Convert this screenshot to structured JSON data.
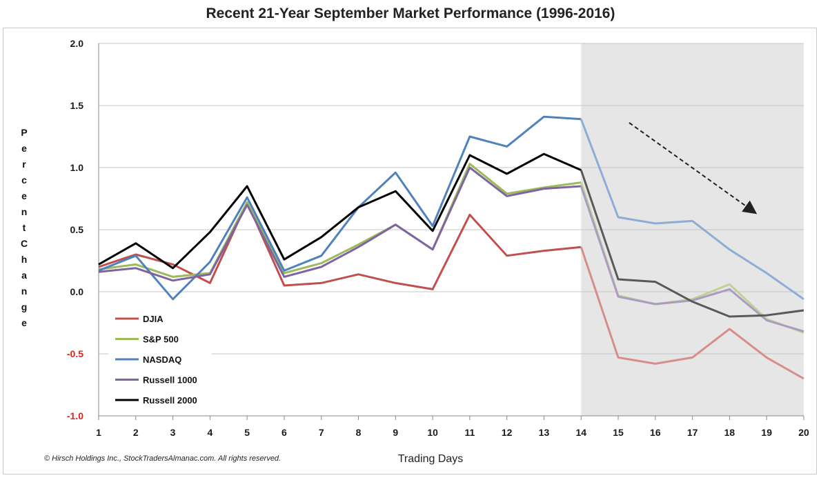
{
  "chart_data": {
    "type": "line",
    "title": "Recent 21-Year September Market Performance (1996-2016)",
    "xlabel": "Trading Days",
    "ylabel": "Percent Change",
    "x": [
      1,
      2,
      3,
      4,
      5,
      6,
      7,
      8,
      9,
      10,
      11,
      12,
      13,
      14,
      15,
      16,
      17,
      18,
      19,
      20
    ],
    "ylim": [
      -1.0,
      2.0
    ],
    "yticks": [
      "2.0",
      "1.5",
      "1.0",
      "0.5",
      "0.0",
      "-0.5",
      "-1.0"
    ],
    "shaded_region": {
      "from": 14,
      "to": 20,
      "color": "#e6e6e6"
    },
    "grid": true,
    "legend_position": "bottom-left",
    "series": [
      {
        "name": "DJIA",
        "color": "#c0504d",
        "values": [
          0.2,
          0.3,
          0.22,
          0.07,
          0.72,
          0.05,
          0.07,
          0.14,
          0.07,
          0.02,
          0.62,
          0.29,
          0.33,
          0.36,
          -0.53,
          -0.58,
          -0.53,
          -0.3,
          -0.53,
          -0.7
        ]
      },
      {
        "name": "S&P 500",
        "color": "#9bbb59",
        "values": [
          0.18,
          0.22,
          0.12,
          0.15,
          0.72,
          0.15,
          0.23,
          0.38,
          0.54,
          0.34,
          1.03,
          0.79,
          0.84,
          0.88,
          -0.03,
          -0.1,
          -0.06,
          0.06,
          -0.22,
          -0.33
        ]
      },
      {
        "name": "NASDAQ",
        "color": "#4f81bd",
        "values": [
          0.17,
          0.29,
          -0.06,
          0.24,
          0.76,
          0.17,
          0.29,
          0.68,
          0.96,
          0.53,
          1.25,
          1.17,
          1.41,
          1.39,
          0.6,
          0.55,
          0.57,
          0.34,
          0.15,
          -0.06
        ]
      },
      {
        "name": "Russell 1000",
        "color": "#8064a2",
        "values": [
          0.16,
          0.19,
          0.09,
          0.14,
          0.7,
          0.12,
          0.2,
          0.36,
          0.54,
          0.34,
          1.0,
          0.77,
          0.83,
          0.85,
          -0.04,
          -0.1,
          -0.07,
          0.02,
          -0.23,
          -0.32
        ]
      },
      {
        "name": "Russell 2000",
        "color": "#000000",
        "values": [
          0.22,
          0.39,
          0.19,
          0.48,
          0.85,
          0.26,
          0.44,
          0.68,
          0.81,
          0.49,
          1.1,
          0.95,
          1.11,
          0.98,
          0.1,
          0.08,
          -0.08,
          -0.2,
          -0.19,
          -0.15
        ]
      }
    ],
    "annotations": [
      "downward-dashed-arrow"
    ]
  },
  "footer": {
    "copyright": "© Hirsch Holdings Inc., StockTradersAlmanac.com. All rights reserved."
  }
}
